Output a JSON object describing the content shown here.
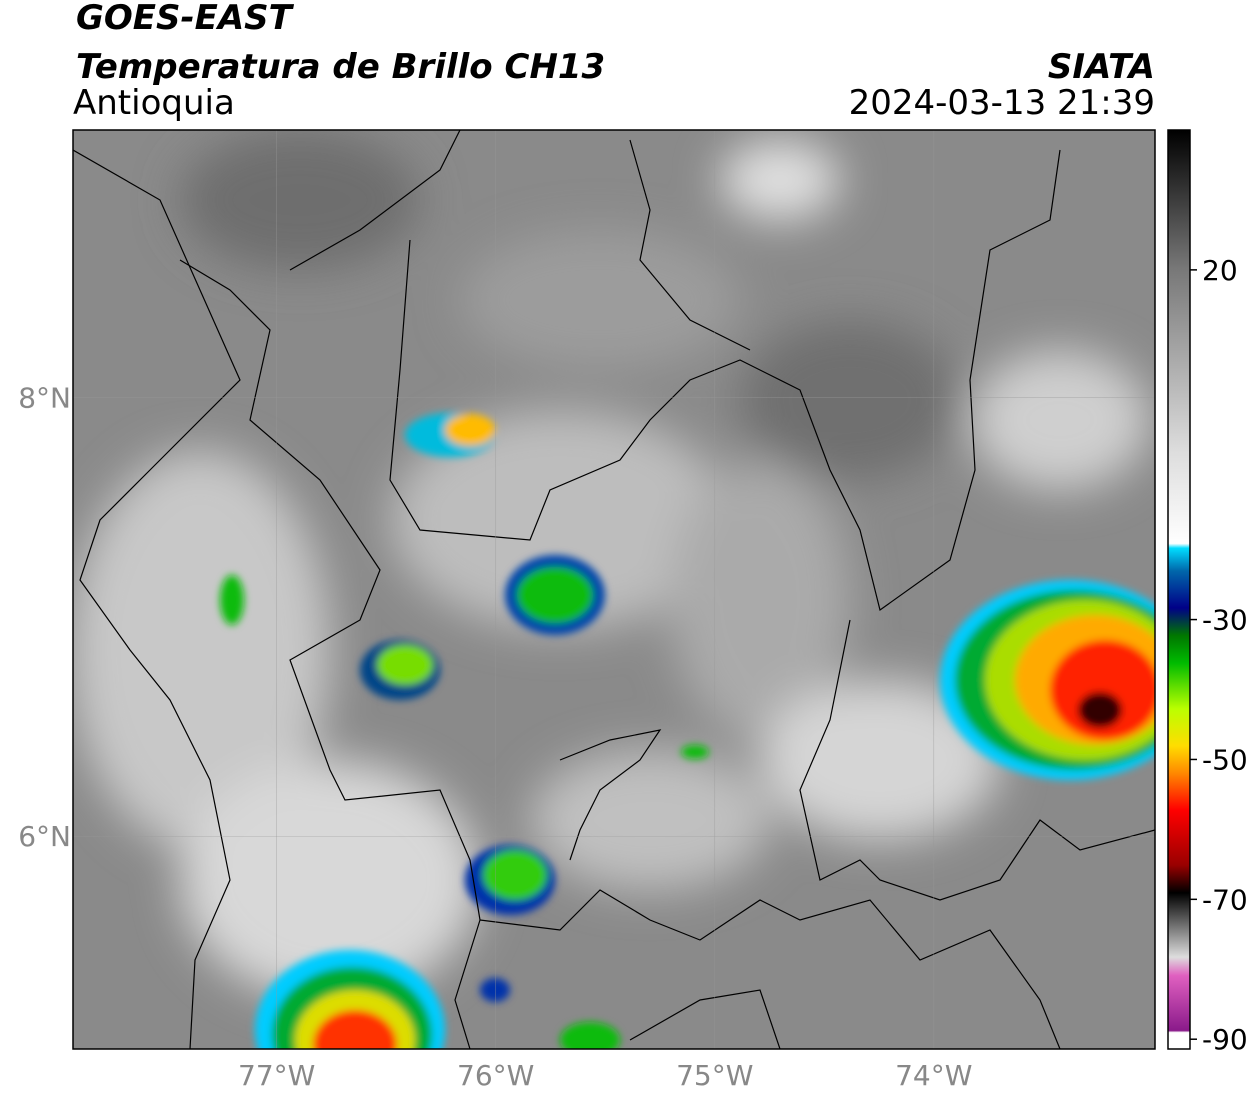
{
  "header": {
    "product": "GOES-EAST",
    "variable": "Temperatura de Brillo CH13",
    "region": "Antioquia",
    "source": "SIATA",
    "datetime": "2024-03-13 21:39"
  },
  "map": {
    "lonlim": [
      -77.93,
      -72.99
    ],
    "latlim": [
      5.03,
      9.22
    ],
    "lon_ticks": [
      {
        "value": -77,
        "label": "77°W"
      },
      {
        "value": -76,
        "label": "76°W"
      },
      {
        "value": -75,
        "label": "75°W"
      },
      {
        "value": -74,
        "label": "74°W"
      }
    ],
    "lat_ticks": [
      {
        "value": 8,
        "label": "8°N"
      },
      {
        "value": 6,
        "label": "6°N"
      }
    ]
  },
  "colorbar": {
    "lim": [
      -91.4,
      40
    ],
    "ticks": [
      20,
      -30,
      -50,
      -70,
      -90
    ]
  }
}
